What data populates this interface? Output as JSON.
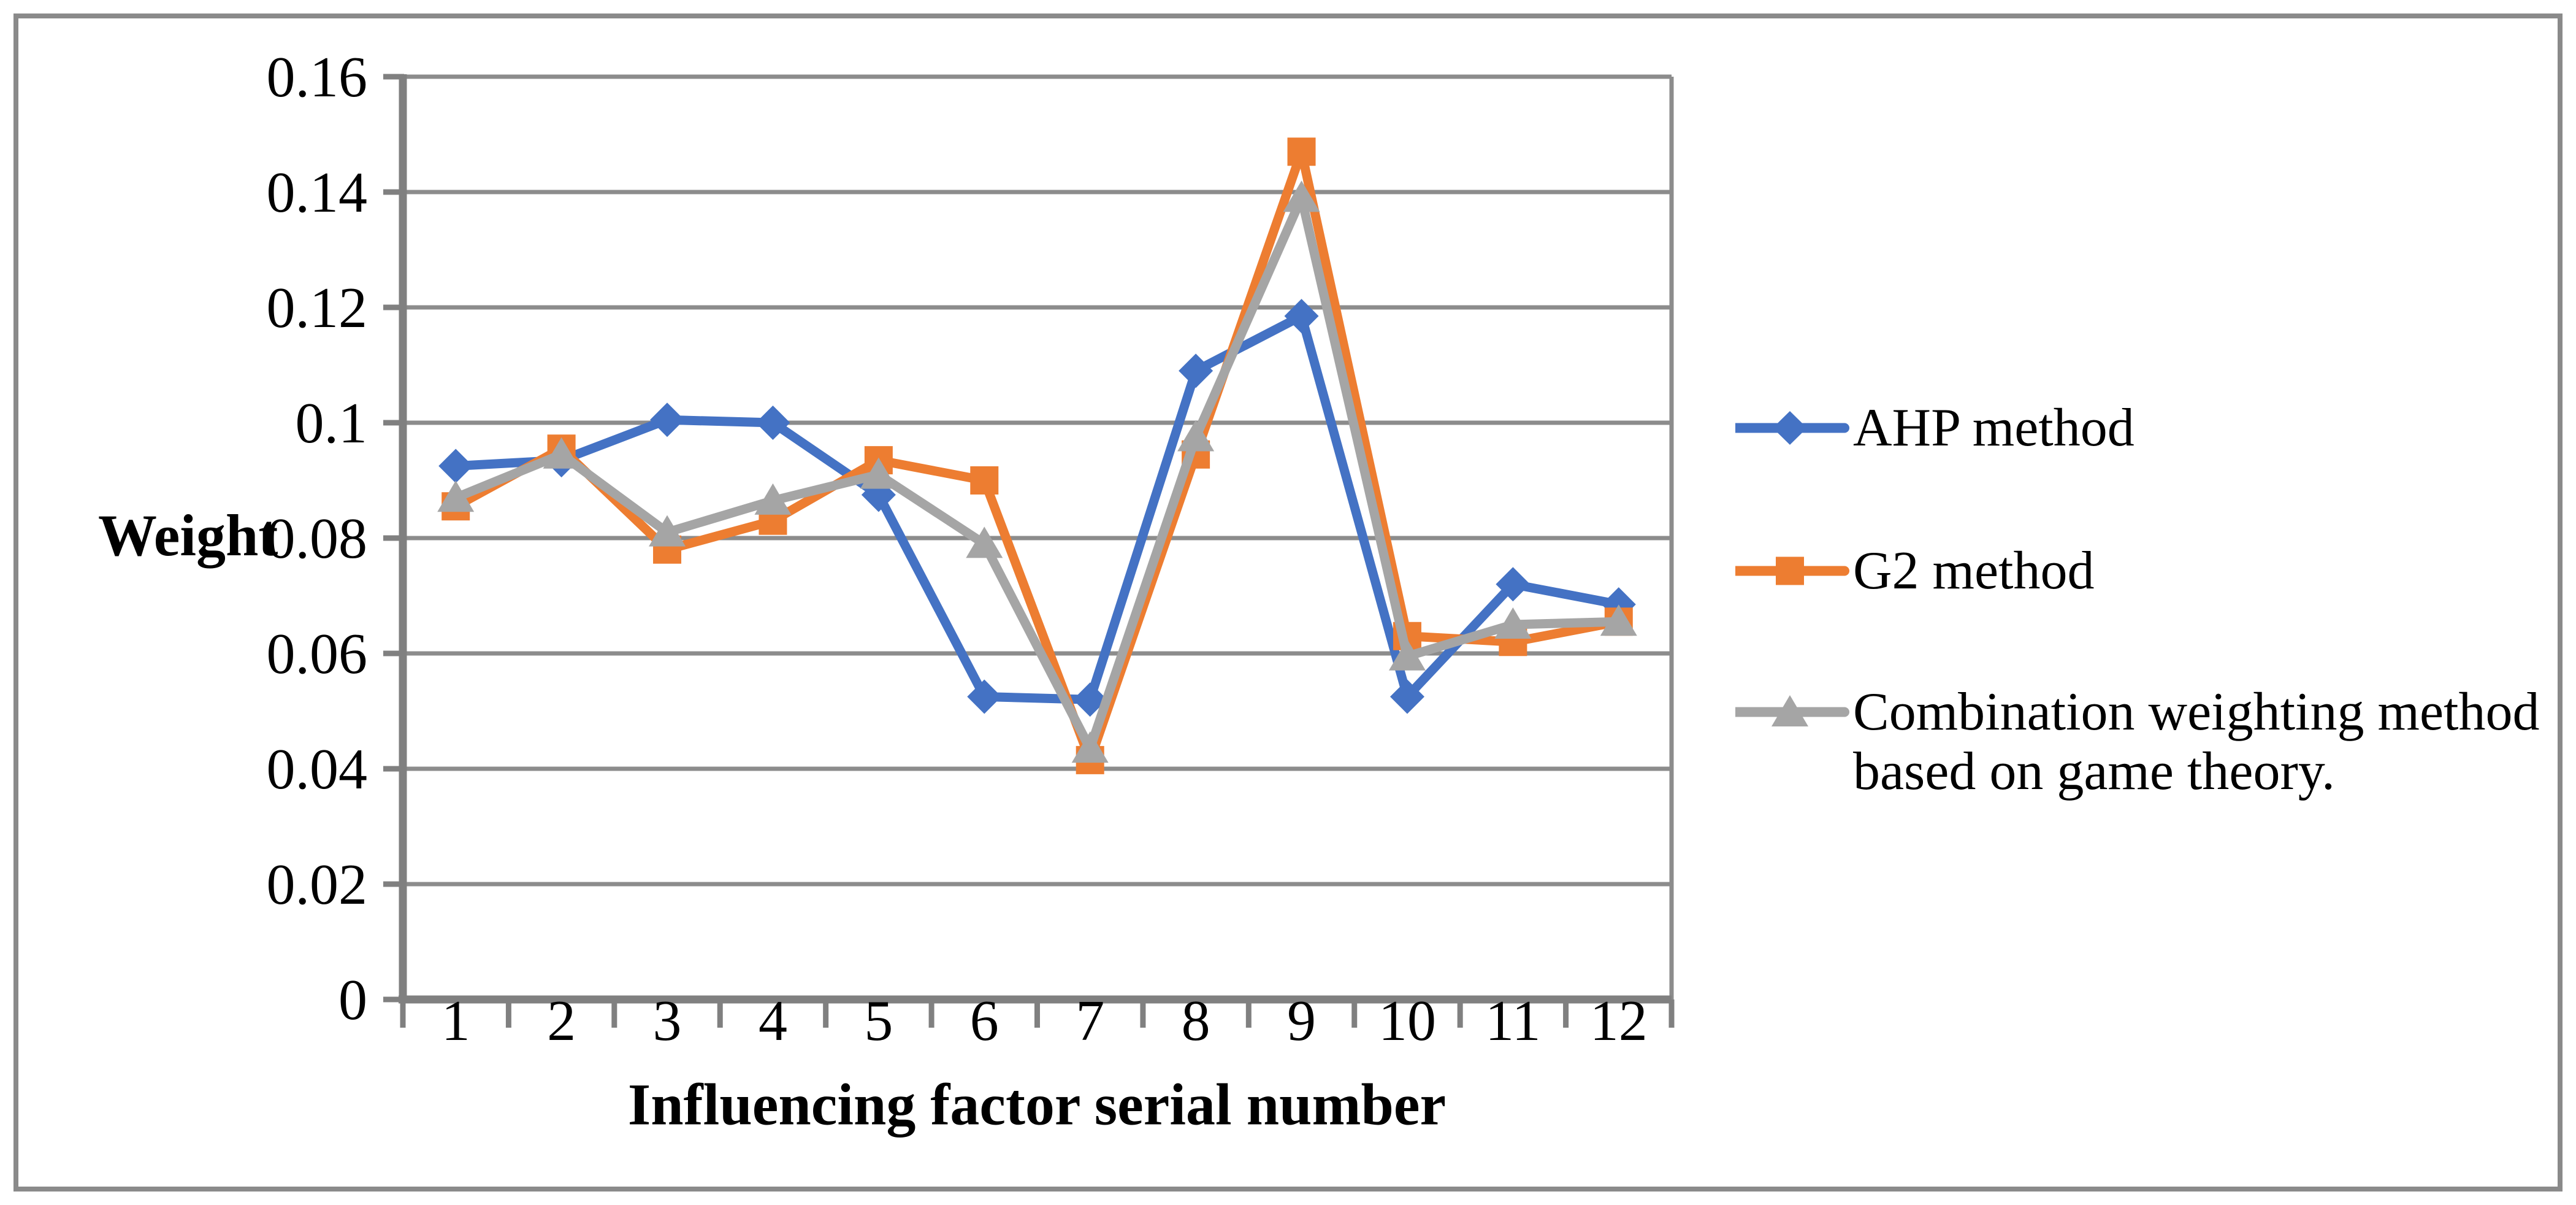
{
  "figure": {
    "background": "#FFFFFF",
    "border_color": "#8A8A8A"
  },
  "chart_data": {
    "type": "line",
    "title": "",
    "xlabel": "Influencing factor serial number",
    "ylabel": "Weight",
    "categories": [
      "1",
      "2",
      "3",
      "4",
      "5",
      "6",
      "7",
      "8",
      "9",
      "10",
      "11",
      "12"
    ],
    "ylim": [
      0,
      0.16
    ],
    "ytick_step": 0.02,
    "ytick_labels": [
      "0",
      "0.02",
      "0.04",
      "0.06",
      "0.08",
      "0.1",
      "0.12",
      "0.14",
      "0.16"
    ],
    "grid": true,
    "legend_position": "right",
    "gridline_color": "#8C8C8C",
    "axis_color": "#808080",
    "series": [
      {
        "name": "AHP method",
        "color": "#4472C4",
        "marker": "diamond",
        "values": [
          0.0925,
          0.0935,
          0.1005,
          0.1,
          0.0875,
          0.0525,
          0.052,
          0.109,
          0.1185,
          0.0525,
          0.072,
          0.0685
        ]
      },
      {
        "name": "G2 method",
        "color": "#ED7D31",
        "marker": "square",
        "values": [
          0.0855,
          0.0955,
          0.078,
          0.083,
          0.0935,
          0.09,
          0.0415,
          0.0945,
          0.147,
          0.063,
          0.062,
          0.0655
        ]
      },
      {
        "name": "Combination weighting method based on game theory.",
        "color": "#A5A5A5",
        "marker": "triangle",
        "values": [
          0.087,
          0.0945,
          0.081,
          0.0865,
          0.091,
          0.079,
          0.0435,
          0.0975,
          0.139,
          0.0595,
          0.065,
          0.0655
        ]
      }
    ]
  }
}
